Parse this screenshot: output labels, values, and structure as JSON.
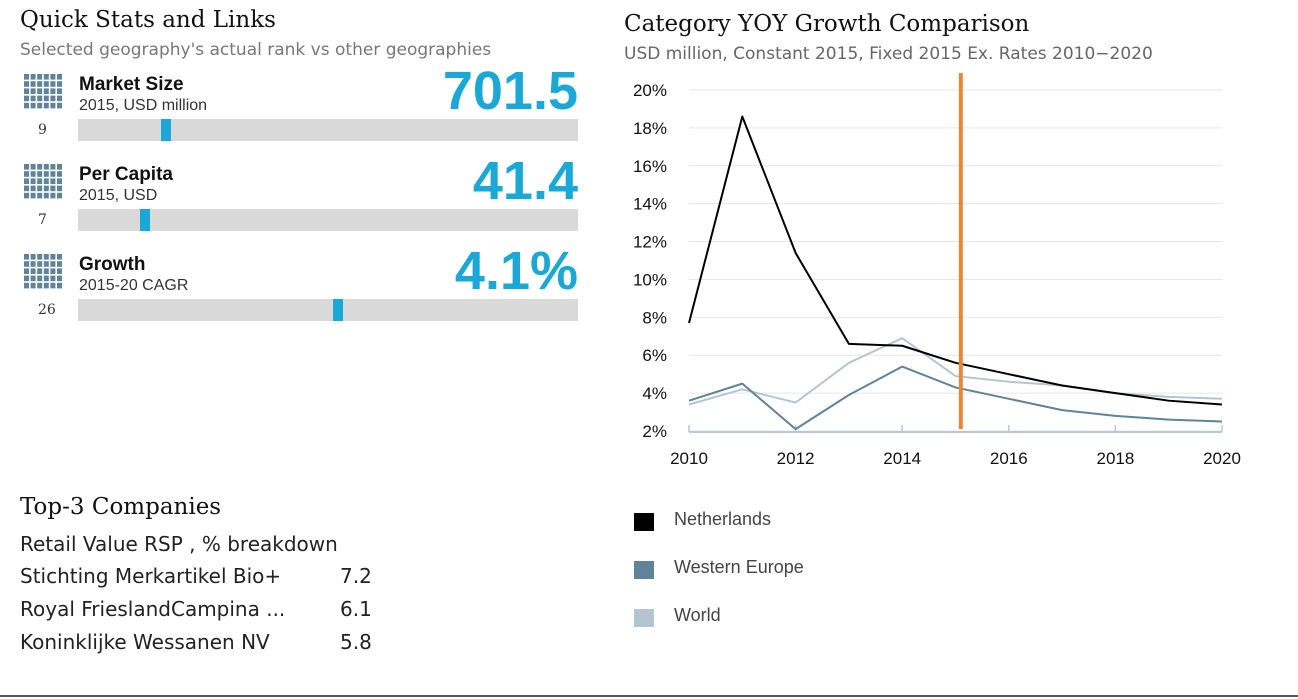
{
  "quick_stats": {
    "title": "Quick Stats and Links",
    "subtitle": "Selected geography's actual rank vs other geographies",
    "items": [
      {
        "label": "Market Size",
        "sublabel": "2015, USD million",
        "value": "701.5",
        "rank": "9",
        "marker_fraction": 0.175
      },
      {
        "label": "Per Capita",
        "sublabel": "2015, USD",
        "value": "41.4",
        "rank": "7",
        "marker_fraction": 0.133
      },
      {
        "label": "Growth",
        "sublabel": "2015-20 CAGR",
        "value": "4.1%",
        "rank": "26",
        "marker_fraction": 0.52
      }
    ],
    "icon": "grid-bars-icon",
    "accent_color": "#1ba8d6"
  },
  "top_companies": {
    "title": "Top-3 Companies",
    "subtitle": "Retail Value RSP , % breakdown",
    "rows": [
      {
        "name": "Stichting Merkartikel Bio+",
        "value": "7.2"
      },
      {
        "name": "Royal FrieslandCampina ...",
        "value": "6.1"
      },
      {
        "name": "Koninklijke Wessanen NV",
        "value": "5.8"
      }
    ]
  },
  "chart_data": {
    "type": "line",
    "title": "Category YOY Growth Comparison",
    "subtitle": "USD million, Constant 2015, Fixed 2015 Ex. Rates  2010−2020",
    "x": [
      2010,
      2011,
      2012,
      2013,
      2014,
      2015,
      2016,
      2017,
      2018,
      2019,
      2020
    ],
    "xticks": [
      2010,
      2012,
      2014,
      2016,
      2018,
      2020
    ],
    "xlim": [
      2010,
      2020
    ],
    "ylim": [
      2,
      20
    ],
    "yticks": [
      2,
      4,
      6,
      8,
      10,
      12,
      14,
      16,
      18,
      20
    ],
    "ytick_labels": [
      "2%",
      "4%",
      "6%",
      "8%",
      "10%",
      "12%",
      "14%",
      "16%",
      "18%",
      "20%"
    ],
    "grid": true,
    "reference_line_x": 2015.1,
    "reference_line_color": "#e8873a",
    "series": [
      {
        "name": "Netherlands",
        "color": "#000000",
        "values": [
          7.7,
          18.6,
          11.4,
          6.6,
          6.5,
          5.6,
          5.0,
          4.4,
          4.0,
          3.6,
          3.4
        ]
      },
      {
        "name": "Western Europe",
        "color": "#5f8499",
        "values": [
          3.6,
          4.5,
          2.1,
          3.9,
          5.4,
          4.3,
          3.7,
          3.1,
          2.8,
          2.6,
          2.5
        ]
      },
      {
        "name": "World",
        "color": "#b3c5d1",
        "values": [
          3.4,
          4.2,
          3.5,
          5.6,
          6.9,
          4.9,
          4.6,
          4.4,
          4.0,
          3.8,
          3.7
        ]
      }
    ],
    "legend_position": "bottom-left"
  }
}
